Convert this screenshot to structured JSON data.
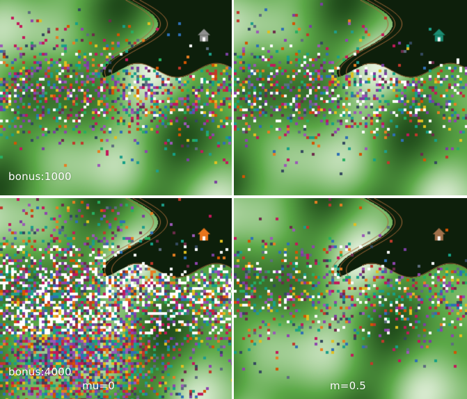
{
  "panels": [
    {
      "id": "p1",
      "label": "bonus:1000",
      "noise": 0.45,
      "white": 0.12,
      "house_color": "#8f8f8f",
      "blob": false
    },
    {
      "id": "p2",
      "label": "",
      "noise": 0.4,
      "white": 0.22,
      "house_color": "#1a8c72",
      "blob": false
    },
    {
      "id": "p3",
      "label": "bonus:4000",
      "sublabel": "mu=0",
      "noise": 0.75,
      "white": 0.35,
      "house_color": "#e8741c",
      "blob": true
    },
    {
      "id": "p4",
      "label": "",
      "sublabel": "m=0.5",
      "noise": 0.35,
      "white": 0.15,
      "house_color": "#a0704a",
      "blob": false
    }
  ],
  "colors": {
    "terrain_light": "#e6f2df",
    "terrain_mid": "#5ba847",
    "terrain_dark": "#1f4a1a",
    "water": "#0d1f0b",
    "coast": "#a86b3a",
    "white_cell": "#ffffff"
  },
  "agent_palette": [
    "#c0392b",
    "#2e6fb5",
    "#7b3fa0",
    "#e0c020",
    "#1e9e8a",
    "#d35400",
    "#6d2b4a",
    "#34495e",
    "#9b59b6",
    "#27ae60",
    "#8e44ad",
    "#e67e22",
    "#16a085",
    "#c2185b",
    "#5d6d7e"
  ]
}
